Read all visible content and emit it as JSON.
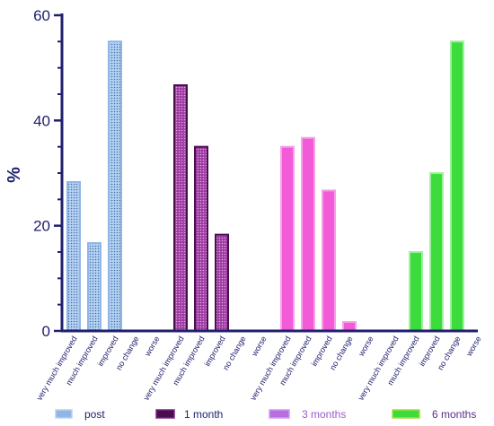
{
  "chart_data": {
    "type": "bar",
    "ylabel": "%",
    "ylim": [
      0,
      60
    ],
    "yticks": [
      0,
      20,
      40,
      60
    ],
    "grid": false,
    "legend_position": "bottom",
    "categories": [
      "very much improved",
      "much improved",
      "improved",
      "no change",
      "worse"
    ],
    "series": [
      {
        "name": "post",
        "values": [
          28.3,
          16.7,
          55.0,
          0,
          0
        ],
        "color": "#8fb6e6",
        "pattern": "#7aa7dc"
      },
      {
        "name": "1 month",
        "values": [
          46.7,
          35.0,
          18.3,
          0,
          0
        ],
        "color": "#4a0e4e",
        "pattern": "#b44fb4"
      },
      {
        "name": "3 months",
        "values": [
          35.0,
          36.7,
          26.7,
          1.7,
          0
        ],
        "color": "#f25ad8",
        "pattern": "#f25ad8"
      },
      {
        "name": "6 months",
        "values": [
          0,
          15.0,
          30.0,
          55.0,
          0
        ],
        "color": "#3ddc3d",
        "pattern": "#3ddc3d"
      }
    ]
  },
  "legend": {
    "items": [
      {
        "label": "post",
        "text_color": "#1f1f6e"
      },
      {
        "label": "1 month",
        "text_color": "#1f1f6e"
      },
      {
        "label": "3 months",
        "text_color": "#9b59d0"
      },
      {
        "label": "6 months",
        "text_color": "#5a2c8e"
      }
    ]
  }
}
